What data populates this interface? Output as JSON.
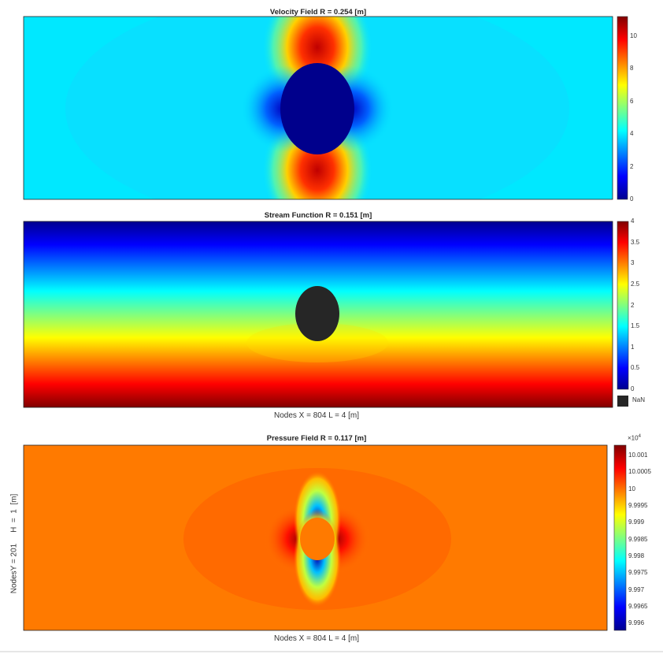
{
  "chart_data": [
    {
      "type": "heatmap",
      "title": "Velocity Field R = 0.254 [m]",
      "colormap": "jet",
      "colorbar": {
        "range": [
          0,
          11.2
        ],
        "ticks": [
          0,
          2,
          4,
          6,
          8,
          10
        ],
        "tick_labels": [
          "0",
          "2",
          "4",
          "6",
          "8",
          "10"
        ]
      },
      "background_value": 4.5,
      "obstacle": "ellipse"
    },
    {
      "type": "heatmap",
      "title": "Stream Function R = 0.151 [m]",
      "colormap": "jet",
      "colorbar": {
        "range": [
          0,
          4
        ],
        "ticks": [
          0,
          0.5,
          1,
          1.5,
          2,
          2.5,
          3,
          3.5,
          4
        ],
        "tick_labels": [
          "0",
          "0.5",
          "1",
          "1.5",
          "2",
          "2.5",
          "3",
          "3.5",
          "4"
        ],
        "nan_label": "NaN",
        "nan_color": "#262626"
      },
      "xlabel": "Nodes X  = 804      L  =  4  [m]",
      "obstacle": "ellipse"
    },
    {
      "type": "heatmap",
      "title": "Pressure Field  R = 0.117 [m]",
      "colormap": "jet",
      "colorbar": {
        "range": [
          9.9958,
          10.0013
        ],
        "multiplier": "×10",
        "multiplier_exp": "4",
        "ticks": [
          9.996,
          9.9965,
          9.997,
          9.9975,
          9.998,
          9.9985,
          9.999,
          9.9995,
          10,
          10.0005,
          10.001
        ],
        "tick_labels": [
          "9.996",
          "9.9965",
          "9.997",
          "9.9975",
          "9.998",
          "9.9985",
          "9.999",
          "9.9995",
          "10",
          "10.0005",
          "10.001"
        ]
      },
      "xlabel": "Nodes X  = 804      L  =  4  [m]",
      "ylabel": "NodesY = 201     H  =  1  [m]",
      "obstacle": "ellipse"
    }
  ]
}
